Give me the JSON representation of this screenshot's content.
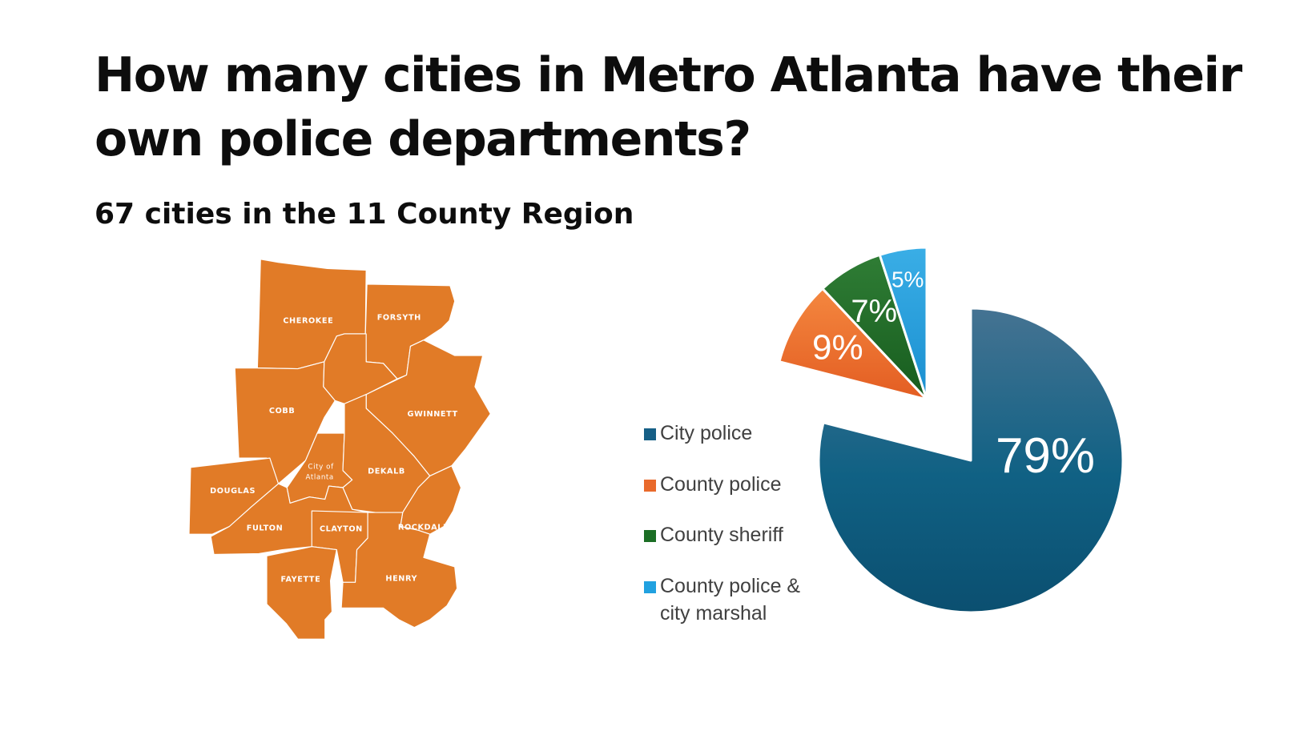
{
  "title": "How many cities in Metro Atlanta have their own police departments?",
  "subtitle": "67 cities in the 11 County Region",
  "map": {
    "fill_color": "#e17b27",
    "labels": {
      "cherokee": "CHEROKEE",
      "forsyth": "FORSYTH",
      "cobb": "COBB",
      "gwinnett": "GWINNETT",
      "atlanta_1": "City of",
      "atlanta_2": "Atlanta",
      "dekalb": "DEKALB",
      "douglas": "DOUGLAS",
      "fulton": "FULTON",
      "clayton": "CLAYTON",
      "rockdale": "ROCKDALE",
      "fayette": "FAYETTE",
      "henry": "HENRY"
    }
  },
  "chart_data": {
    "type": "pie",
    "exploded": true,
    "slices": [
      {
        "label": "City police",
        "value": 79,
        "display": "79%",
        "color": "#165f86"
      },
      {
        "label": "County police",
        "value": 9,
        "display": "9%",
        "color": "#e96a2c"
      },
      {
        "label": "County sheriff",
        "value": 7,
        "display": "7%",
        "color": "#1b6e25"
      },
      {
        "label": "County police & city marshal",
        "value": 5,
        "display": "5%",
        "color": "#21a1e0"
      }
    ],
    "legend": {
      "placement": "left",
      "entries": [
        {
          "text": [
            "City police"
          ],
          "color": "#165f86"
        },
        {
          "text": [
            "County police"
          ],
          "color": "#e96a2c"
        },
        {
          "text": [
            "County sheriff"
          ],
          "color": "#1b6e25"
        },
        {
          "text": [
            "County police &",
            "city marshal"
          ],
          "color": "#21a1e0"
        }
      ]
    }
  }
}
